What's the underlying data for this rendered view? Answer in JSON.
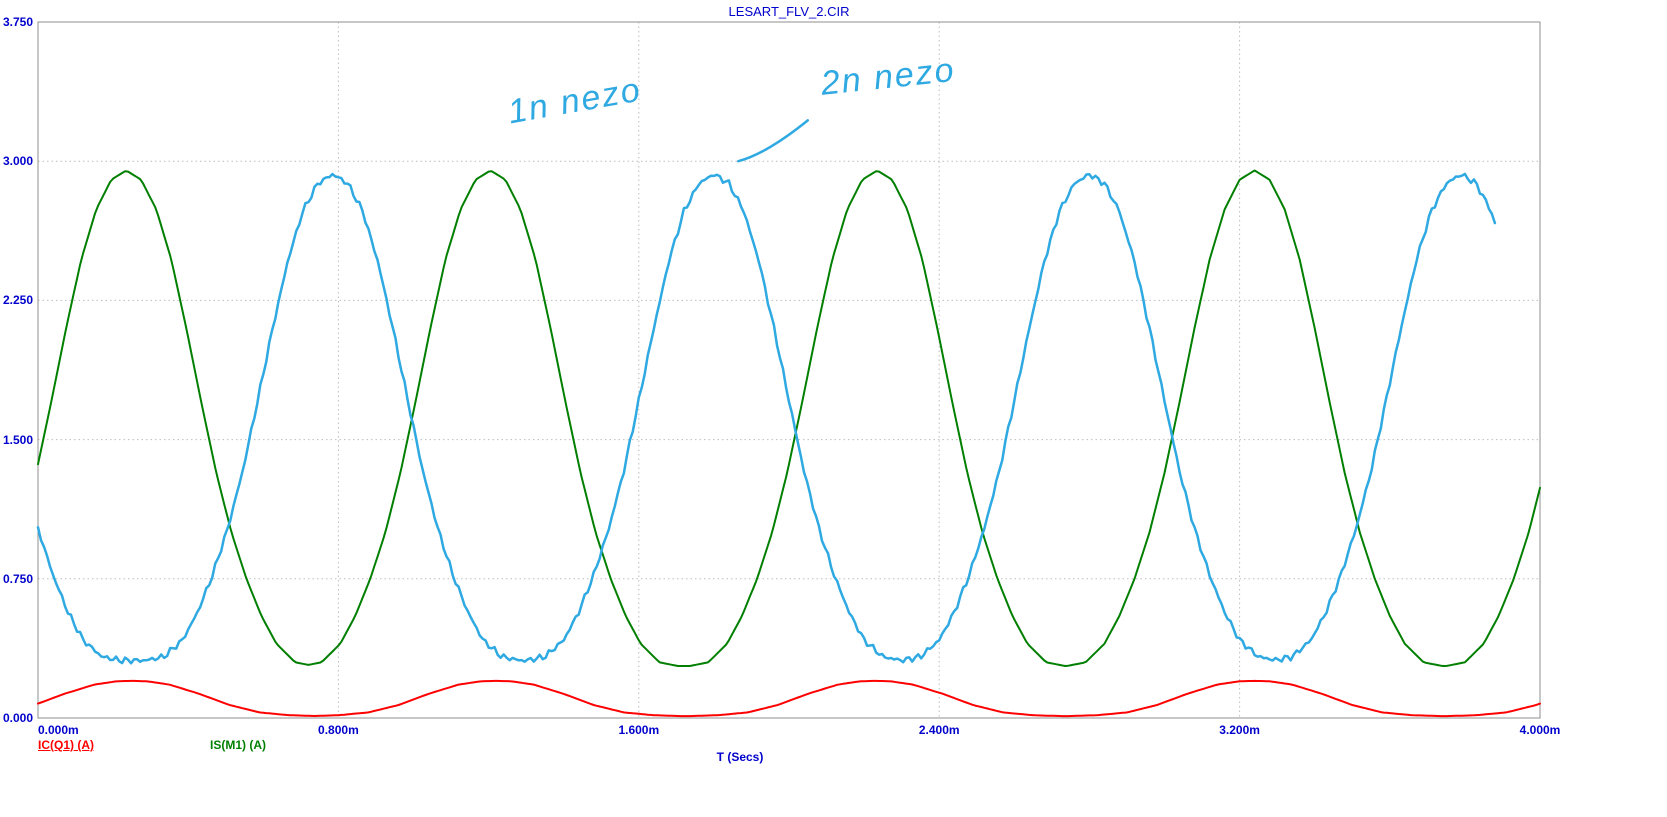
{
  "header": {
    "title": "LESART_FLV_2.CIR"
  },
  "axis": {
    "x_label": "T (Secs)"
  },
  "legend": {
    "items": [
      {
        "label": "IC(Q1) (A)",
        "color": "#ff0000",
        "underline": true
      },
      {
        "label": "IS(M1) (A)",
        "color": "#007f00",
        "underline": false
      }
    ]
  },
  "colors": {
    "label_blue": "#0000cc",
    "grid": "#bdbdbd",
    "border": "#8f8f8f",
    "trace_red": "#ff0000",
    "trace_green": "#007f00",
    "trace_blue": "#2fa9e1",
    "handwriting_blue": "#2fa9e1",
    "background": "#ffffff"
  },
  "chart_data": {
    "type": "line",
    "title": "LESART_FLV_2.CIR",
    "xlabel": "T (Secs)",
    "ylabel": "",
    "xlim_ms": [
      0,
      4
    ],
    "ylim": [
      0,
      3.75
    ],
    "grid": "dotted",
    "x_ticks": [
      {
        "value": 0.0,
        "label": "0.000m"
      },
      {
        "value": 0.8,
        "label": "0.800m"
      },
      {
        "value": 1.6,
        "label": "1.600m"
      },
      {
        "value": 2.4,
        "label": "2.400m"
      },
      {
        "value": 3.2,
        "label": "3.200m"
      },
      {
        "value": 4.0,
        "label": "4.000m"
      }
    ],
    "y_ticks": [
      {
        "value": 0.0,
        "label": "0.000"
      },
      {
        "value": 0.75,
        "label": "0.750"
      },
      {
        "value": 1.5,
        "label": "1.500"
      },
      {
        "value": 2.25,
        "label": "2.250"
      },
      {
        "value": 3.0,
        "label": "3.000"
      },
      {
        "value": 3.75,
        "label": "3.750"
      }
    ],
    "series": [
      {
        "name": "IC(Q1) (A)",
        "color": "#ff0000",
        "width": 2,
        "t_start": 0,
        "t_end": 4.0,
        "peak_value": 0.2,
        "min_value": 0.01,
        "peak_times_ms": [
          0.25,
          1.22,
          2.23,
          3.24,
          4.25
        ],
        "pulse_shape": {
          "dt": [
            -0.5,
            -0.42,
            -0.34,
            -0.26,
            -0.18,
            -0.1,
            -0.04,
            0.0,
            0.04,
            0.1,
            0.18,
            0.26,
            0.34,
            0.42,
            0.5
          ],
          "v": [
            0.01,
            0.015,
            0.03,
            0.07,
            0.13,
            0.18,
            0.198,
            0.2,
            0.198,
            0.18,
            0.13,
            0.07,
            0.03,
            0.015,
            0.01
          ]
        },
        "jitter": 0
      },
      {
        "name": "IS(M1) (A)",
        "color": "#007f00",
        "width": 2,
        "t_start": 0,
        "t_end": 4.0,
        "peak_value": 2.95,
        "min_value": 0.28,
        "peak_times_ms": [
          0.235,
          1.205,
          2.235,
          3.24,
          4.25
        ],
        "pulse_shape": {
          "dt": [
            -0.5,
            -0.45,
            -0.4,
            -0.36,
            -0.32,
            -0.28,
            -0.24,
            -0.2,
            -0.16,
            -0.12,
            -0.08,
            -0.04,
            0.0,
            0.04,
            0.08,
            0.12,
            0.16,
            0.2,
            0.24,
            0.28,
            0.32,
            0.36,
            0.4,
            0.45,
            0.5
          ],
          "v": [
            0.28,
            0.3,
            0.4,
            0.55,
            0.75,
            1.0,
            1.32,
            1.7,
            2.1,
            2.47,
            2.74,
            2.9,
            2.95,
            2.9,
            2.74,
            2.47,
            2.1,
            1.7,
            1.32,
            1.0,
            0.75,
            0.55,
            0.4,
            0.3,
            0.28
          ]
        },
        "jitter": 0
      },
      {
        "name": "unlabeled blue trace",
        "color": "#2fa9e1",
        "width": 2.5,
        "t_start": 0,
        "t_end": 3.88,
        "peak_value": 2.93,
        "min_value": 0.31,
        "peak_times_ms": [
          -0.28,
          0.785,
          1.8,
          2.8,
          3.79
        ],
        "pulse_shape": {
          "dt": [
            -0.5,
            -0.45,
            -0.4,
            -0.36,
            -0.32,
            -0.28,
            -0.24,
            -0.2,
            -0.16,
            -0.12,
            -0.08,
            -0.04,
            0.0,
            0.04,
            0.08,
            0.12,
            0.16,
            0.2,
            0.24,
            0.28,
            0.32,
            0.36,
            0.4,
            0.45,
            0.5
          ],
          "v": [
            0.31,
            0.33,
            0.42,
            0.57,
            0.77,
            1.02,
            1.33,
            1.71,
            2.1,
            2.46,
            2.73,
            2.88,
            2.93,
            2.88,
            2.73,
            2.46,
            2.1,
            1.71,
            1.33,
            1.02,
            0.77,
            0.57,
            0.42,
            0.33,
            0.31
          ]
        },
        "jitter": 0.018
      }
    ],
    "annotations": [
      {
        "text": "1n nezo",
        "x_ms": 1.245,
        "y": 3.36,
        "rotate_deg": -10
      },
      {
        "text": "2n nezo",
        "x_ms": 2.08,
        "y": 3.52,
        "rotate_deg": -6,
        "leader": {
          "from": [
            2.05,
            3.22
          ],
          "ctrl": [
            1.94,
            3.04
          ],
          "to": [
            1.865,
            3.0
          ]
        }
      }
    ]
  }
}
